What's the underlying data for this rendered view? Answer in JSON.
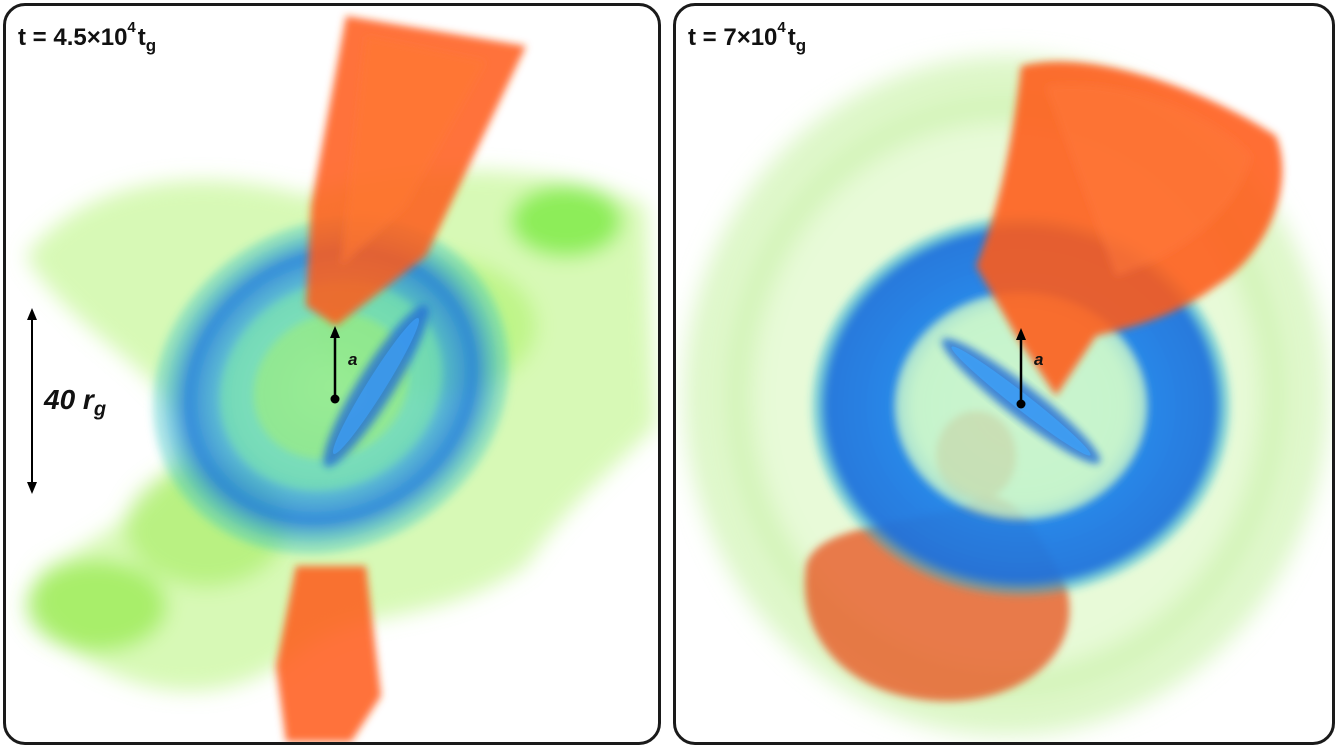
{
  "panels": [
    {
      "time_prefix": "t = 4.5×10",
      "time_exp": "4",
      "time_var": "t",
      "time_sub": "g",
      "scale_value": "40 r",
      "scale_sub": "g",
      "spin_label": "a"
    },
    {
      "time_prefix": "t = 7×10",
      "time_exp": "4",
      "time_var": "t",
      "time_sub": "g",
      "spin_label": "a"
    }
  ],
  "colors": {
    "jet": "#ff5a1a",
    "disk": "#1e7ae6",
    "wind": "#8cf03c",
    "frame": "#1a1a1a"
  }
}
